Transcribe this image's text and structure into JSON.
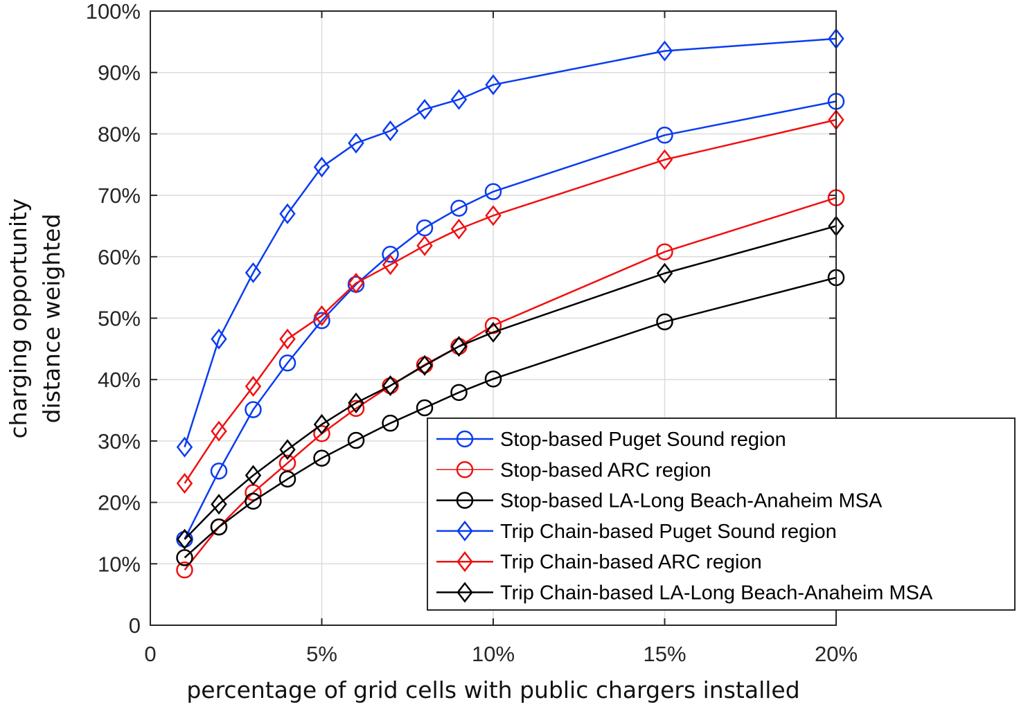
{
  "chart_data": {
    "type": "line",
    "title": "",
    "xlabel": "percentage of grid cells with public chargers installed",
    "ylabel": [
      "charging opportunity",
      "distance weighted"
    ],
    "xlim": [
      0,
      20
    ],
    "ylim": [
      0,
      100
    ],
    "x_ticks": [
      0,
      5,
      10,
      15,
      20
    ],
    "x_tick_labels": [
      "0",
      "5%",
      "10%",
      "15%",
      "20%"
    ],
    "y_ticks": [
      0,
      10,
      20,
      30,
      40,
      50,
      60,
      70,
      80,
      90,
      100
    ],
    "y_tick_labels": [
      "0",
      "10%",
      "20%",
      "30%",
      "40%",
      "50%",
      "60%",
      "70%",
      "80%",
      "90%",
      "100%"
    ],
    "grid": true,
    "legend_position": "bottom-right",
    "x": [
      1,
      2,
      3,
      4,
      5,
      6,
      7,
      8,
      9,
      10,
      15,
      20
    ],
    "series": [
      {
        "name": "Stop-based Puget Sound region",
        "color": "#0a3cf0",
        "marker": "circle",
        "values": [
          14.0,
          25.1,
          35.1,
          42.7,
          49.6,
          55.5,
          60.4,
          64.7,
          67.9,
          70.6,
          79.8,
          85.3
        ]
      },
      {
        "name": "Stop-based ARC region",
        "color": "#f01010",
        "marker": "circle",
        "values": [
          9.0,
          16.0,
          21.6,
          26.4,
          31.2,
          35.3,
          39.0,
          42.4,
          45.4,
          48.8,
          60.8,
          69.6
        ]
      },
      {
        "name": "Stop-based LA-Long Beach-Anaheim MSA",
        "color": "#000000",
        "marker": "circle",
        "values": [
          11.0,
          16.0,
          20.2,
          23.8,
          27.2,
          30.1,
          32.9,
          35.4,
          37.9,
          40.1,
          49.4,
          56.6
        ]
      },
      {
        "name": "Trip Chain-based Puget Sound region",
        "color": "#0a3cf0",
        "marker": "diamond",
        "values": [
          29.0,
          46.6,
          57.4,
          67.0,
          74.6,
          78.5,
          80.5,
          84.0,
          85.6,
          88.0,
          93.5,
          95.5
        ]
      },
      {
        "name": "Trip Chain-based ARC region",
        "color": "#f01010",
        "marker": "diamond",
        "values": [
          23.1,
          31.6,
          38.9,
          46.6,
          50.4,
          55.7,
          58.7,
          61.8,
          64.5,
          66.7,
          75.8,
          82.3
        ]
      },
      {
        "name": "Trip Chain-based LA-Long Beach-Anaheim MSA",
        "color": "#000000",
        "marker": "diamond",
        "values": [
          14.0,
          19.7,
          24.4,
          28.6,
          32.7,
          36.2,
          39.0,
          42.3,
          45.4,
          47.7,
          57.3,
          65.0
        ]
      }
    ]
  }
}
